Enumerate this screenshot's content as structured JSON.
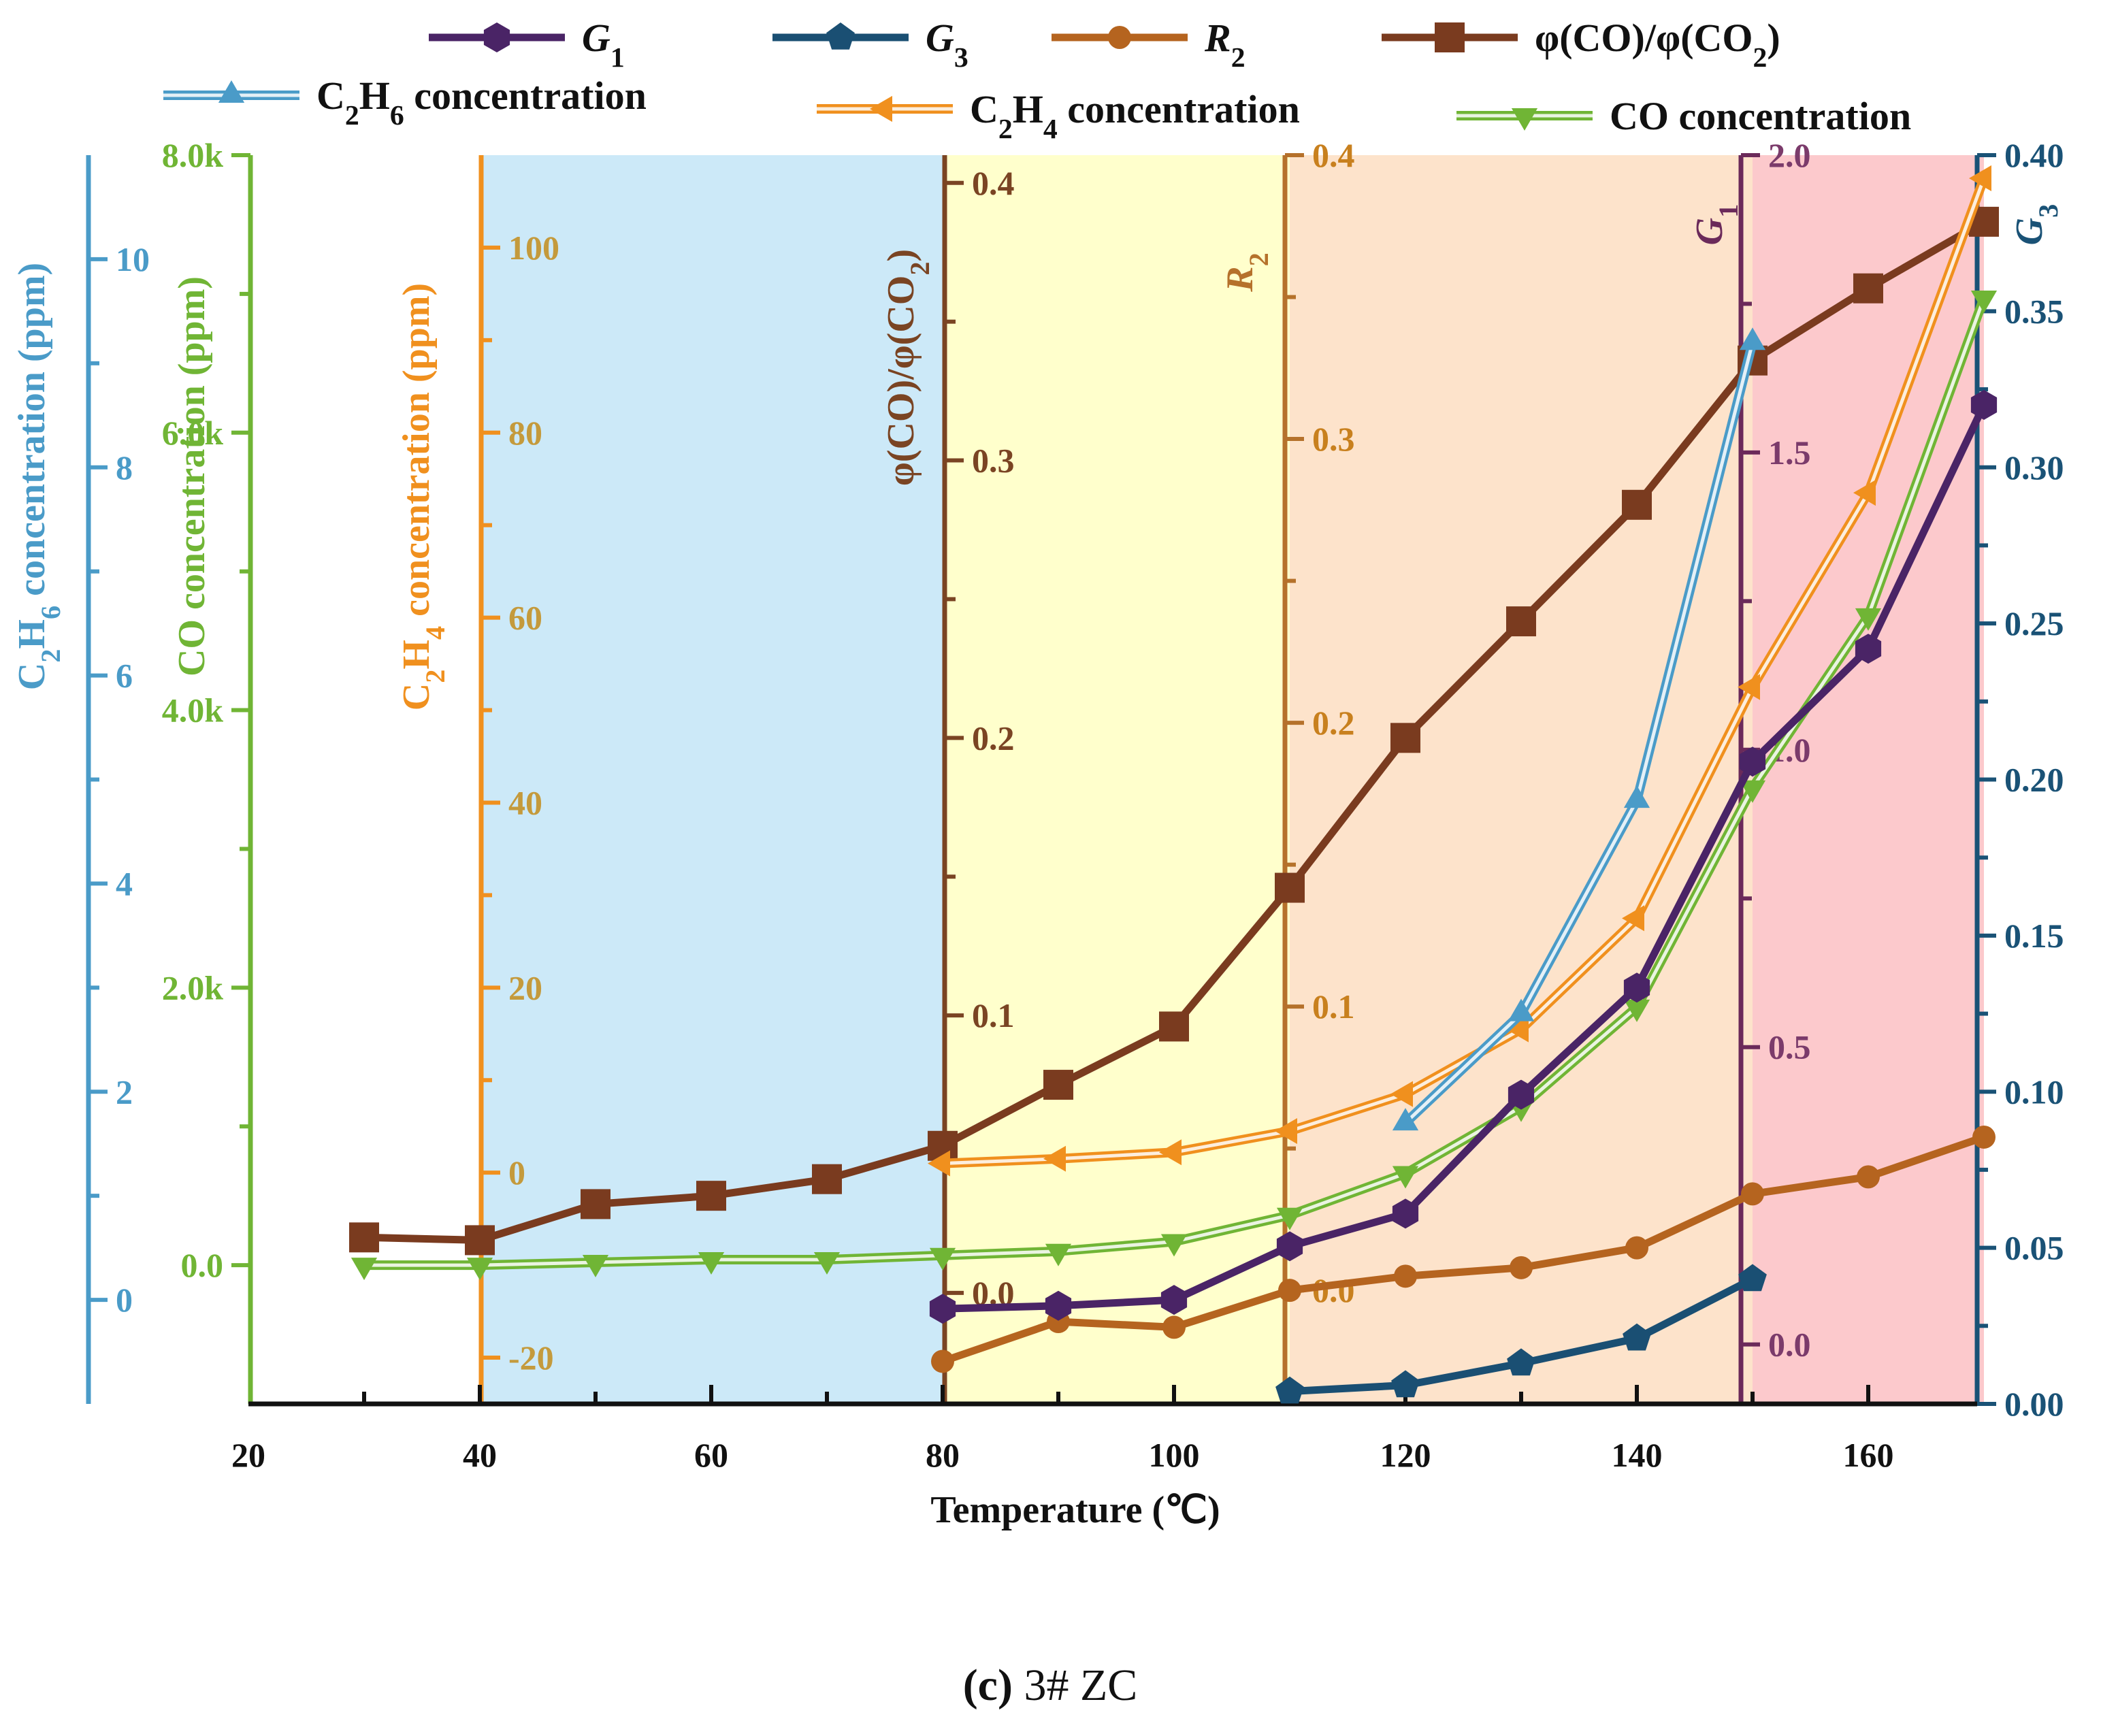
{
  "chart_data": {
    "type": "line",
    "caption": {
      "label": "(c)",
      "text": "3# ZC"
    },
    "xlabel": "Temperature (℃)",
    "xlim": [
      20,
      172
    ],
    "xticks": [
      20,
      40,
      60,
      80,
      100,
      120,
      140,
      160
    ],
    "regions": [
      {
        "x": [
          40,
          80
        ],
        "color": "#cce9f8"
      },
      {
        "x": [
          80,
          110
        ],
        "color": "#ffffcc"
      },
      {
        "x": [
          110,
          150
        ],
        "color": "#fde3cb"
      },
      {
        "x": [
          150,
          170
        ],
        "color": "#fcc9cc"
      }
    ],
    "axes": {
      "c2h6": {
        "label": "C2H6 concentration (ppm)",
        "color": "#4a9bc8",
        "ylim": [
          -1,
          11
        ],
        "ticks": [
          0,
          2,
          4,
          6,
          8,
          10
        ],
        "tick_labels": [
          "0",
          "2",
          "4",
          "6",
          "8",
          "10"
        ]
      },
      "co": {
        "label": "CO concentration (ppm)",
        "color": "#70b535",
        "ylim": [
          -1000,
          8000
        ],
        "ticks": [
          0,
          2000,
          4000,
          6000,
          8000
        ],
        "tick_labels": [
          "0.0",
          "2.0k",
          "4.0k",
          "6.0k",
          "8.0k"
        ]
      },
      "c2h4": {
        "label": "C2H4 concentration (ppm)",
        "color": "#f0901e",
        "tick_color": "#c49a3c",
        "ylim": [
          -25,
          110
        ],
        "ticks": [
          -20,
          0,
          20,
          40,
          60,
          80,
          100
        ],
        "tick_labels": [
          "-20",
          "0",
          "20",
          "40",
          "60",
          "80",
          "100"
        ]
      },
      "ratio": {
        "label": "φ(CO)/φ(CO2)",
        "color": "#7a4423",
        "ylim": [
          -0.04,
          0.41
        ],
        "ticks": [
          0.0,
          0.1,
          0.2,
          0.3,
          0.4
        ],
        "tick_labels": [
          "0.0",
          "0.1",
          "0.2",
          "0.3",
          "0.4"
        ]
      },
      "r2": {
        "label": "R2",
        "color": "#b5712b",
        "tick_color": "#c8801e",
        "ylim": [
          -0.04,
          0.4
        ],
        "ticks": [
          0.0,
          0.1,
          0.2,
          0.3,
          0.4
        ],
        "tick_labels": [
          "0.0",
          "0.1",
          "0.2",
          "0.3",
          "0.4"
        ]
      },
      "g1": {
        "label": "G1",
        "color": "#6b2a5a",
        "tick_color": "#7b3b6b",
        "ylim": [
          -0.1,
          2.0
        ],
        "ticks": [
          0.0,
          0.5,
          1.0,
          1.5,
          2.0
        ],
        "tick_labels": [
          "0.0",
          "0.5",
          "1.0",
          "1.5",
          "2.0"
        ]
      },
      "g3": {
        "label": "G3",
        "color": "#1a5276",
        "ylim": [
          0.0,
          0.4
        ],
        "ticks": [
          0.0,
          0.05,
          0.1,
          0.15,
          0.2,
          0.25,
          0.3,
          0.35,
          0.4
        ],
        "tick_labels": [
          "0.00",
          "0.05",
          "0.10",
          "0.15",
          "0.20",
          "0.25",
          "0.30",
          "0.35",
          "0.40"
        ]
      }
    },
    "series": [
      {
        "name": "G1",
        "axis": "g1",
        "color": "#4a2466",
        "marker": "hexagon",
        "x": [
          80,
          90,
          100,
          110,
          120,
          130,
          140,
          150,
          160,
          170
        ],
        "values": [
          0.06,
          0.065,
          0.075,
          0.165,
          0.22,
          0.42,
          0.6,
          0.98,
          1.17,
          1.58
        ]
      },
      {
        "name": "G3",
        "axis": "g3",
        "color": "#1a4f73",
        "marker": "pentagon",
        "x": [
          110,
          120,
          130,
          140,
          150
        ],
        "values": [
          0.004,
          0.006,
          0.013,
          0.021,
          0.04
        ]
      },
      {
        "name": "R2",
        "axis": "r2",
        "color": "#b5641f",
        "marker": "circle",
        "x": [
          80,
          90,
          100,
          110,
          120,
          130,
          140,
          150,
          160,
          170
        ],
        "values": [
          -0.025,
          -0.011,
          -0.013,
          0.0,
          0.005,
          0.008,
          0.015,
          0.034,
          0.04,
          0.054
        ]
      },
      {
        "name": "φ(CO)/φ(CO2)",
        "axis": "ratio",
        "color": "#7a3b1f",
        "marker": "square",
        "x": [
          30,
          40,
          50,
          60,
          70,
          80,
          90,
          100,
          110,
          120,
          130,
          140,
          150,
          160,
          170
        ],
        "values": [
          0.02,
          0.019,
          0.032,
          0.035,
          0.041,
          0.053,
          0.075,
          0.096,
          0.146,
          0.2,
          0.242,
          0.284,
          0.336,
          0.362,
          0.386
        ]
      },
      {
        "name": "C2H6 concentration",
        "axis": "c2h6",
        "color": "#4a9bc8",
        "marker": "triangle-up",
        "double": true,
        "x": [
          120,
          130,
          140,
          150
        ],
        "values": [
          1.7,
          2.75,
          4.8,
          9.2
        ]
      },
      {
        "name": "C2H4 concentration",
        "axis": "c2h4",
        "color": "#f0901e",
        "marker": "triangle-left",
        "double": true,
        "x": [
          80,
          90,
          100,
          110,
          120,
          130,
          140,
          150,
          160,
          170
        ],
        "values": [
          1,
          1.5,
          2.2,
          4.5,
          8.5,
          15.5,
          27.5,
          52.5,
          73.5,
          107.5
        ]
      },
      {
        "name": "CO concentration",
        "axis": "co",
        "color": "#70b535",
        "marker": "triangle-down",
        "double": true,
        "x": [
          30,
          40,
          50,
          60,
          70,
          80,
          90,
          100,
          110,
          120,
          130,
          140,
          150,
          160,
          170
        ],
        "values": [
          0,
          0,
          20,
          40,
          40,
          70,
          100,
          170,
          360,
          660,
          1140,
          1860,
          3440,
          4680,
          6970
        ]
      }
    ],
    "legend": {
      "placement": "top"
    }
  }
}
